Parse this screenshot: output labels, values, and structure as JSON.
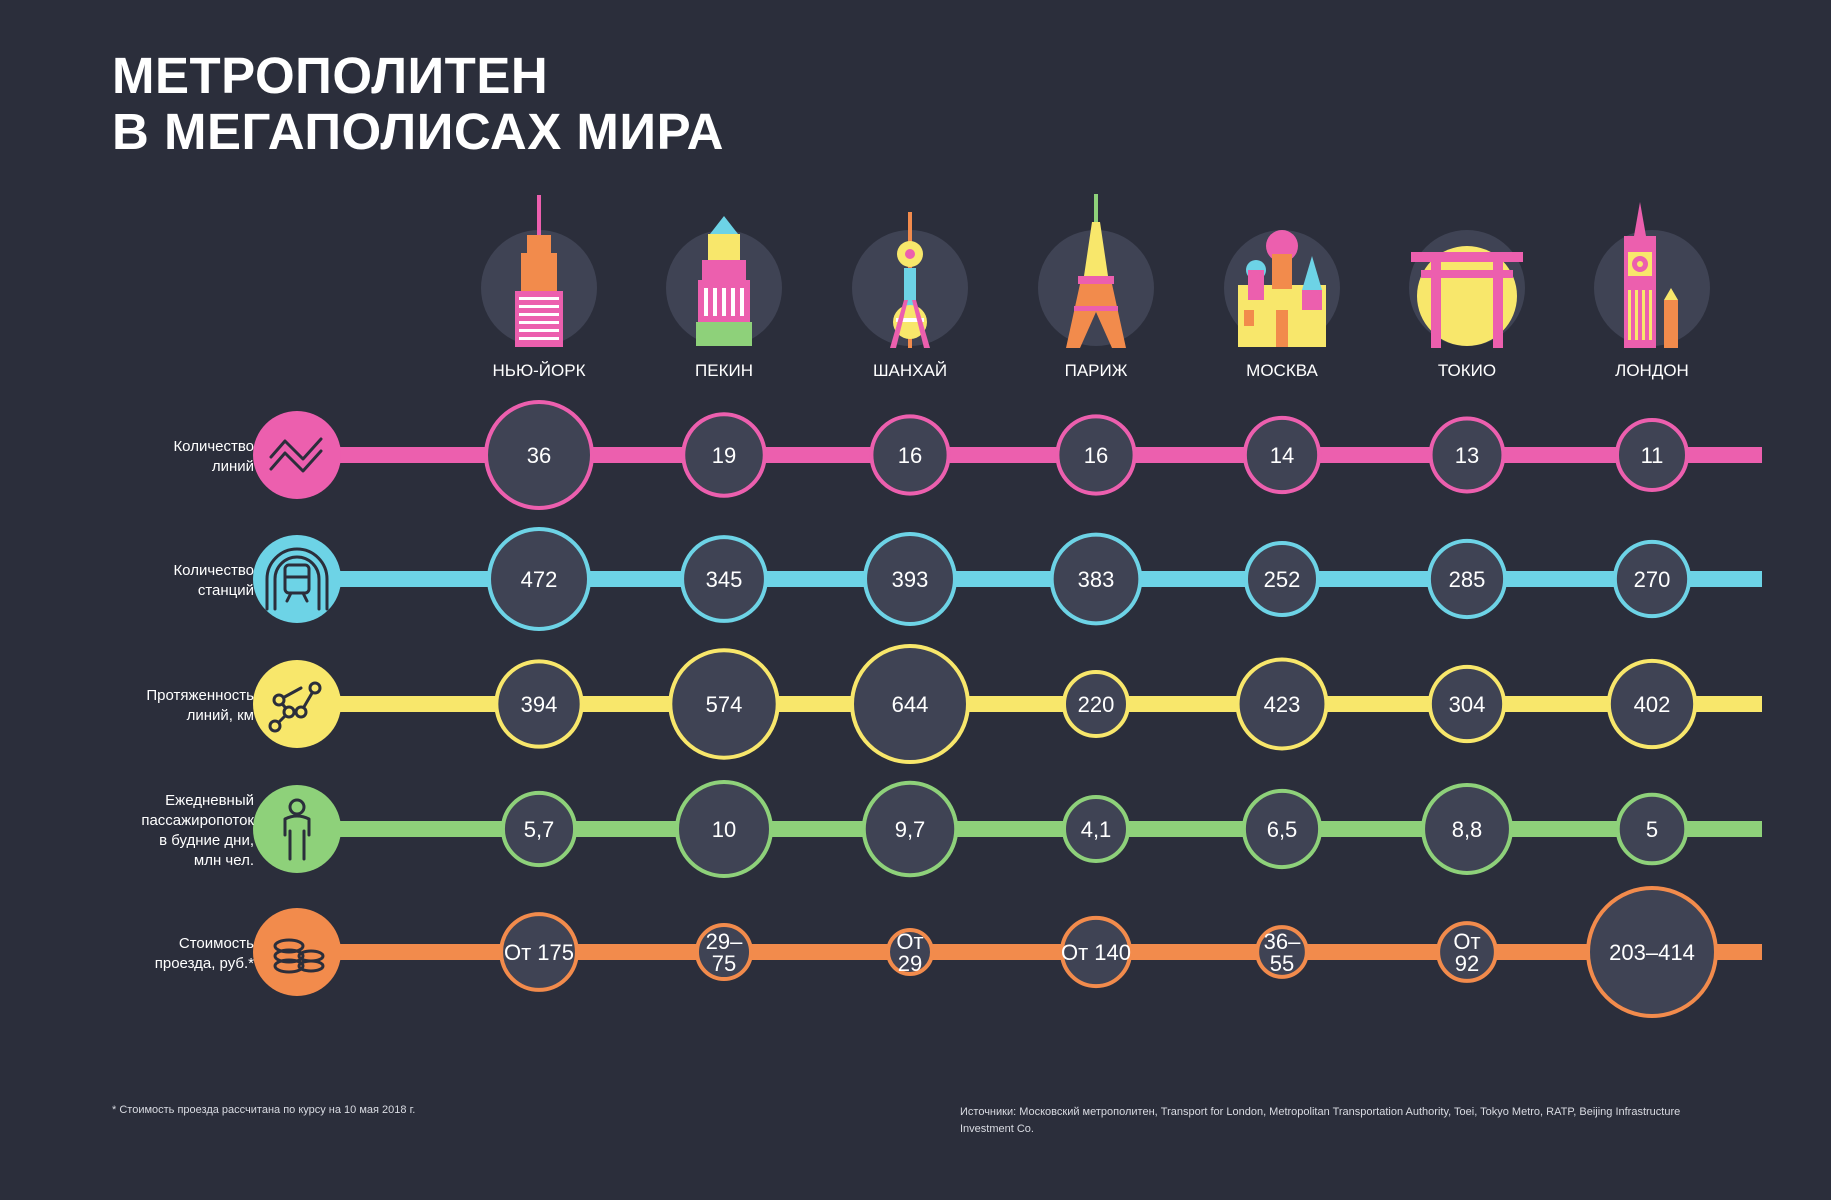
{
  "title_line1": "МЕТРОПОЛИТЕН",
  "title_line2": "В МЕГАПОЛИСАХ МИРА",
  "footnote": "* Стоимость проезда рассчитана по курсу на 10 мая 2018 г.",
  "sources": "Источники: Московский метрополитен, Transport for London, Metropolitan Transportation Authority, Toei, Tokyo Metro, RATP, Beijing Infrastructure Investment Co.",
  "colors": {
    "background": "#2b2e3b",
    "circle_dark": "#3f4354",
    "pink": "#ec5fae",
    "cyan": "#6dd3e6",
    "yellow": "#f8e76b",
    "green": "#8ed17a",
    "orange": "#f28b4c"
  },
  "chart_data": {
    "type": "table",
    "cities": [
      {
        "name": "НЬЮ-ЙОРК",
        "icon": "skyscraper-icon"
      },
      {
        "name": "ПЕКИН",
        "icon": "pagoda-tower-icon"
      },
      {
        "name": "ШАНХАЙ",
        "icon": "tv-tower-icon"
      },
      {
        "name": "ПАРИЖ",
        "icon": "eiffel-tower-icon"
      },
      {
        "name": "МОСКВА",
        "icon": "kremlin-icon"
      },
      {
        "name": "ТОКИО",
        "icon": "torii-gate-icon"
      },
      {
        "name": "ЛОНДОН",
        "icon": "big-ben-icon"
      }
    ],
    "rows": [
      {
        "label": [
          "Количество",
          "линий"
        ],
        "color": "#ec5fae",
        "icon": "lines-chart-icon",
        "values": [
          "36",
          "19",
          "16",
          "16",
          "14",
          "13",
          "11"
        ],
        "numeric": [
          36,
          19,
          16,
          16,
          14,
          13,
          11
        ]
      },
      {
        "label": [
          "Количество",
          "станций"
        ],
        "color": "#6dd3e6",
        "icon": "train-tunnel-icon",
        "values": [
          "472",
          "345",
          "393",
          "383",
          "252",
          "285",
          "270"
        ],
        "numeric": [
          472,
          345,
          393,
          383,
          252,
          285,
          270
        ]
      },
      {
        "label": [
          "Протяженность",
          "линий, км"
        ],
        "color": "#f8e76b",
        "icon": "route-nodes-icon",
        "values": [
          "394",
          "574",
          "644",
          "220",
          "423",
          "304",
          "402"
        ],
        "numeric": [
          394,
          574,
          644,
          220,
          423,
          304,
          402
        ]
      },
      {
        "label": [
          "Ежедневный",
          "пассажиропоток",
          "в будние дни,",
          "млн чел."
        ],
        "color": "#8ed17a",
        "icon": "person-icon",
        "values": [
          "5,7",
          "10",
          "9,7",
          "4,1",
          "6,5",
          "8,8",
          "5"
        ],
        "numeric": [
          5.7,
          10,
          9.7,
          4.1,
          6.5,
          8.8,
          5
        ]
      },
      {
        "label": [
          "Стоимость",
          "проезда, руб.*"
        ],
        "color": "#f28b4c",
        "icon": "coins-icon",
        "values": [
          "От 175",
          "29–75",
          "От 29",
          "От 140",
          "36–55",
          "От 92",
          "203–414"
        ],
        "numeric": [
          175,
          75,
          29,
          140,
          55,
          92,
          414
        ]
      }
    ]
  }
}
